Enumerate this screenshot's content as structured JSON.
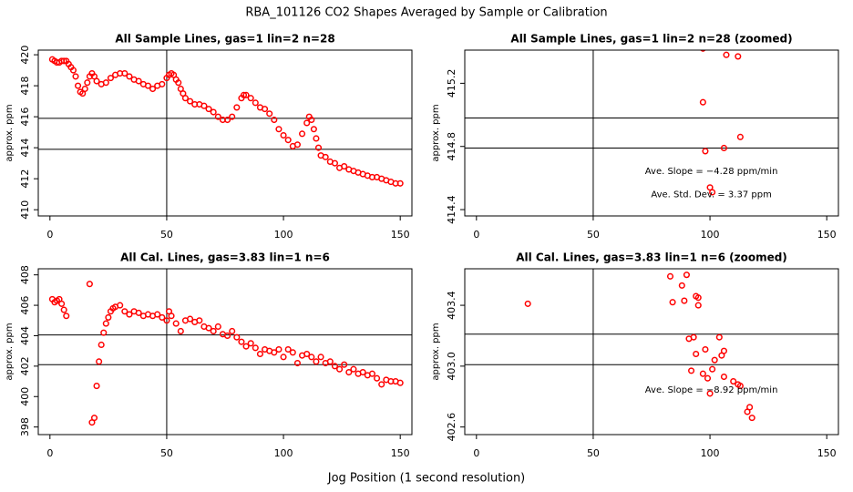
{
  "title": "RBA_101126  CO2 Shapes Averaged by Sample or Calibration",
  "xlabel": "Jog Position (1 second resolution)",
  "chart_data": [
    {
      "type": "scatter",
      "title": "All Sample Lines, gas=1 lin=2 n=28",
      "ylabel": "approx. ppm",
      "color": "#ff0000",
      "xlim": [
        -5,
        155
      ],
      "ylim": [
        409.6,
        420.3
      ],
      "xticks": [
        0,
        50,
        100,
        150
      ],
      "yticks": [
        410,
        412,
        414,
        416,
        418,
        420
      ],
      "hlines": [
        415.9,
        413.9
      ],
      "vline": 50,
      "x": [
        1,
        2,
        3,
        4,
        5,
        6,
        7,
        8,
        9,
        10,
        11,
        12,
        13,
        14,
        15,
        16,
        17,
        18,
        19,
        20,
        22,
        24,
        26,
        28,
        30,
        32,
        34,
        36,
        38,
        40,
        42,
        44,
        46,
        48,
        50,
        51,
        52,
        53,
        54,
        55,
        56,
        57,
        58,
        60,
        62,
        64,
        66,
        68,
        70,
        72,
        74,
        76,
        78,
        80,
        82,
        83,
        84,
        86,
        88,
        90,
        92,
        94,
        96,
        98,
        100,
        102,
        104,
        106,
        108,
        110,
        111,
        112,
        113,
        114,
        115,
        116,
        118,
        120,
        122,
        124,
        126,
        128,
        130,
        132,
        134,
        136,
        138,
        140,
        142,
        144,
        146,
        148,
        150
      ],
      "y": [
        419.7,
        419.6,
        419.5,
        419.5,
        419.6,
        419.6,
        419.6,
        419.4,
        419.2,
        419.0,
        418.6,
        418.0,
        417.6,
        417.5,
        417.8,
        418.2,
        418.6,
        418.8,
        418.6,
        418.3,
        418.1,
        418.2,
        418.5,
        418.7,
        418.8,
        418.8,
        418.6,
        418.4,
        418.3,
        418.1,
        418.0,
        417.8,
        418.0,
        418.1,
        418.5,
        418.7,
        418.8,
        418.7,
        418.4,
        418.2,
        417.8,
        417.5,
        417.2,
        417.0,
        416.8,
        416.8,
        416.7,
        416.5,
        416.3,
        416.0,
        415.8,
        415.8,
        416.0,
        416.6,
        417.2,
        417.4,
        417.4,
        417.2,
        416.9,
        416.6,
        416.5,
        416.2,
        415.8,
        415.2,
        414.8,
        414.5,
        414.1,
        414.2,
        414.9,
        415.6,
        416.0,
        415.8,
        415.2,
        414.6,
        414.0,
        413.5,
        413.4,
        413.1,
        413.0,
        412.7,
        412.8,
        412.6,
        412.5,
        412.4,
        412.3,
        412.2,
        412.1,
        412.1,
        412.0,
        411.9,
        411.8,
        411.7,
        411.7
      ]
    },
    {
      "type": "scatter",
      "title": "All Sample Lines, gas=1 lin=2 n=28 (zoomed)",
      "ylabel": "approx. ppm",
      "color": "#ff0000",
      "xlim": [
        -5,
        155
      ],
      "ylim": [
        414.36,
        415.41
      ],
      "xticks": [
        0,
        50,
        100,
        150
      ],
      "yticks": [
        414.4,
        414.8,
        415.2
      ],
      "hlines": [
        414.98,
        414.79
      ],
      "vline": 50,
      "annotations": [
        "Ave. Slope =  −4.28  ppm/min",
        "Ave. Std. Dev. =  3.37  ppm"
      ],
      "x": [
        97,
        107,
        112,
        97,
        113,
        98,
        106,
        100,
        101
      ],
      "y": [
        415.42,
        415.38,
        415.37,
        415.08,
        414.86,
        414.77,
        414.79,
        414.54,
        414.51
      ]
    },
    {
      "type": "scatter",
      "title": "All Cal. Lines, gas=3.83 lin=1 n=6",
      "ylabel": "approx. ppm",
      "color": "#ff0000",
      "xlim": [
        -5,
        155
      ],
      "ylim": [
        397.5,
        408.4
      ],
      "xticks": [
        0,
        50,
        100,
        150
      ],
      "yticks": [
        398,
        400,
        402,
        404,
        406,
        408
      ],
      "hlines": [
        404.05,
        402.1
      ],
      "vline": 50,
      "x": [
        1,
        2,
        3,
        4,
        5,
        6,
        7,
        17,
        18,
        19,
        20,
        21,
        22,
        23,
        24,
        25,
        26,
        27,
        28,
        30,
        32,
        34,
        36,
        38,
        40,
        42,
        44,
        46,
        48,
        50,
        51,
        52,
        54,
        56,
        58,
        60,
        62,
        64,
        66,
        68,
        70,
        72,
        74,
        76,
        78,
        80,
        82,
        84,
        86,
        88,
        90,
        92,
        94,
        96,
        98,
        100,
        102,
        104,
        106,
        108,
        110,
        112,
        114,
        116,
        118,
        120,
        122,
        124,
        126,
        128,
        130,
        132,
        134,
        136,
        138,
        140,
        142,
        144,
        146,
        148,
        150
      ],
      "y": [
        406.4,
        406.2,
        406.3,
        406.4,
        406.1,
        405.7,
        405.3,
        407.4,
        398.3,
        398.6,
        400.7,
        402.3,
        403.4,
        404.2,
        404.8,
        405.2,
        405.6,
        405.8,
        405.9,
        406.0,
        405.6,
        405.4,
        405.6,
        405.5,
        405.3,
        405.4,
        405.3,
        405.4,
        405.2,
        405.0,
        405.6,
        405.3,
        404.8,
        404.3,
        405.0,
        405.1,
        404.9,
        405.0,
        404.6,
        404.5,
        404.3,
        404.6,
        404.1,
        404.0,
        404.3,
        403.9,
        403.6,
        403.3,
        403.5,
        403.2,
        402.8,
        403.1,
        403.0,
        402.9,
        403.1,
        402.6,
        403.1,
        402.9,
        402.2,
        402.7,
        402.8,
        402.6,
        402.3,
        402.6,
        402.2,
        402.3,
        402.0,
        401.8,
        402.1,
        401.6,
        401.8,
        401.5,
        401.6,
        401.4,
        401.5,
        401.2,
        400.8,
        401.1,
        401.0,
        401.0,
        400.9
      ]
    },
    {
      "type": "scatter",
      "title": "All Cal. Lines, gas=3.83 lin=1 n=6 (zoomed)",
      "ylabel": "approx. ppm",
      "color": "#ff0000",
      "xlim": [
        -5,
        155
      ],
      "ylim": [
        402.55,
        403.64
      ],
      "xticks": [
        0,
        50,
        100,
        150
      ],
      "yticks": [
        {
          "value": 402.6,
          "label": "402.6"
        },
        {
          "value": 403,
          "label": "403.0"
        },
        {
          "value": 403.4,
          "label": "403.4"
        }
      ],
      "hlines": [
        403.21,
        403.01
      ],
      "vline": 50,
      "annotations": [
        "Ave. Slope =  −8.92  ppm/min"
      ],
      "x": [
        22,
        83,
        84,
        88,
        89,
        90,
        94,
        95,
        95,
        91,
        93,
        94,
        98,
        101,
        102,
        105,
        106,
        104,
        92,
        97,
        100,
        99,
        106,
        110,
        112,
        113,
        117,
        116,
        118
      ],
      "y": [
        403.41,
        403.59,
        403.42,
        403.53,
        403.43,
        403.6,
        403.46,
        403.45,
        403.4,
        403.18,
        403.19,
        403.08,
        403.11,
        402.98,
        403.04,
        403.07,
        403.1,
        403.19,
        402.97,
        402.95,
        402.82,
        402.92,
        402.93,
        402.9,
        402.88,
        402.87,
        402.73,
        402.7,
        402.66
      ]
    }
  ]
}
